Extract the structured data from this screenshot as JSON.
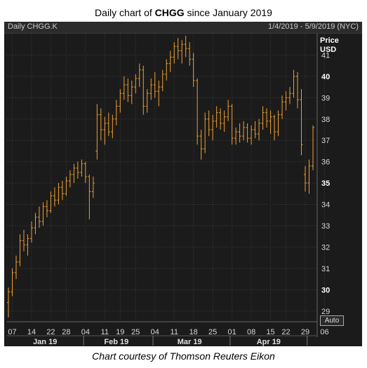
{
  "title": {
    "prefix": "Daily chart of ",
    "ticker": "CHGG",
    "suffix": " since January 2019"
  },
  "panel": {
    "symbol": "Daily CHGG.K",
    "range": "1/4/2019 - 5/9/2019 (NYC)"
  },
  "axis": {
    "price_label": "Price",
    "currency_label": "USD",
    "auto_button": "Auto"
  },
  "caption": "Chart courtesy of Thomson Reuters Eikon",
  "colors": {
    "bar": "#f0a030",
    "background": "#1b1b1b",
    "grid": "#3c3c3c"
  },
  "chart_data": {
    "type": "bar",
    "style": "ohlc",
    "ylim": [
      28.5,
      42
    ],
    "yticks": [
      29,
      30,
      31,
      32,
      33,
      34,
      35,
      36,
      37,
      38,
      39,
      40,
      41
    ],
    "ytick_bold": [
      30,
      35,
      40
    ],
    "grid": true,
    "day_ticks": [
      {
        "label": "07",
        "index": 1
      },
      {
        "label": "14",
        "index": 6
      },
      {
        "label": "22",
        "index": 11
      },
      {
        "label": "28",
        "index": 15
      },
      {
        "label": "04",
        "index": 20
      },
      {
        "label": "11",
        "index": 25
      },
      {
        "label": "19",
        "index": 29
      },
      {
        "label": "25",
        "index": 33
      },
      {
        "label": "04",
        "index": 38
      },
      {
        "label": "11",
        "index": 43
      },
      {
        "label": "18",
        "index": 48
      },
      {
        "label": "25",
        "index": 53
      },
      {
        "label": "01",
        "index": 58
      },
      {
        "label": "08",
        "index": 63
      },
      {
        "label": "15",
        "index": 68
      },
      {
        "label": "22",
        "index": 72
      },
      {
        "label": "29",
        "index": 77
      },
      {
        "label": "06",
        "index": 82
      }
    ],
    "month_labels": [
      {
        "label": "Jan 19",
        "center_index": 9.5
      },
      {
        "label": "Feb 19",
        "center_index": 28
      },
      {
        "label": "Mar 19",
        "center_index": 47
      },
      {
        "label": "Apr 19",
        "center_index": 67.5
      }
    ],
    "month_boundaries": [
      19.5,
      37.5,
      57.5,
      77.5
    ],
    "bars": [
      {
        "o": 29.4,
        "h": 30.1,
        "l": 28.7,
        "c": 29.9
      },
      {
        "o": 29.9,
        "h": 31.0,
        "l": 29.7,
        "c": 30.8
      },
      {
        "o": 30.8,
        "h": 31.6,
        "l": 30.5,
        "c": 31.3
      },
      {
        "o": 31.3,
        "h": 32.6,
        "l": 31.1,
        "c": 32.3
      },
      {
        "o": 32.3,
        "h": 32.8,
        "l": 31.8,
        "c": 32.1
      },
      {
        "o": 32.1,
        "h": 32.6,
        "l": 31.6,
        "c": 32.4
      },
      {
        "o": 32.4,
        "h": 33.2,
        "l": 32.2,
        "c": 32.9
      },
      {
        "o": 32.9,
        "h": 33.6,
        "l": 32.6,
        "c": 33.4
      },
      {
        "o": 33.4,
        "h": 33.9,
        "l": 32.9,
        "c": 33.2
      },
      {
        "o": 33.2,
        "h": 34.1,
        "l": 33.0,
        "c": 33.9
      },
      {
        "o": 33.9,
        "h": 34.2,
        "l": 33.4,
        "c": 33.7
      },
      {
        "o": 33.7,
        "h": 34.6,
        "l": 33.6,
        "c": 34.4
      },
      {
        "o": 34.4,
        "h": 34.8,
        "l": 33.9,
        "c": 34.2
      },
      {
        "o": 34.2,
        "h": 35.0,
        "l": 34.0,
        "c": 34.8
      },
      {
        "o": 34.8,
        "h": 35.1,
        "l": 34.2,
        "c": 34.5
      },
      {
        "o": 34.5,
        "h": 35.3,
        "l": 34.4,
        "c": 35.1
      },
      {
        "o": 35.1,
        "h": 35.6,
        "l": 34.8,
        "c": 35.4
      },
      {
        "o": 35.4,
        "h": 35.9,
        "l": 35.0,
        "c": 35.7
      },
      {
        "o": 35.7,
        "h": 36.0,
        "l": 35.2,
        "c": 35.5
      },
      {
        "o": 35.5,
        "h": 36.1,
        "l": 35.3,
        "c": 35.9
      },
      {
        "o": 35.9,
        "h": 36.0,
        "l": 35.0,
        "c": 35.3
      },
      {
        "o": 35.3,
        "h": 35.4,
        "l": 33.3,
        "c": 34.6
      },
      {
        "o": 34.6,
        "h": 35.3,
        "l": 34.3,
        "c": 35.0
      },
      {
        "o": 36.5,
        "h": 38.7,
        "l": 36.1,
        "c": 38.2
      },
      {
        "o": 38.2,
        "h": 38.5,
        "l": 37.0,
        "c": 37.5
      },
      {
        "o": 37.5,
        "h": 38.1,
        "l": 36.8,
        "c": 37.8
      },
      {
        "o": 37.8,
        "h": 38.3,
        "l": 37.2,
        "c": 37.4
      },
      {
        "o": 37.4,
        "h": 38.2,
        "l": 37.1,
        "c": 38.0
      },
      {
        "o": 38.0,
        "h": 38.9,
        "l": 37.7,
        "c": 38.6
      },
      {
        "o": 38.6,
        "h": 39.4,
        "l": 38.3,
        "c": 39.2
      },
      {
        "o": 39.2,
        "h": 40.0,
        "l": 38.9,
        "c": 39.6
      },
      {
        "o": 39.6,
        "h": 39.9,
        "l": 38.8,
        "c": 39.1
      },
      {
        "o": 39.1,
        "h": 39.8,
        "l": 38.7,
        "c": 39.5
      },
      {
        "o": 39.5,
        "h": 40.1,
        "l": 39.2,
        "c": 39.9
      },
      {
        "o": 39.9,
        "h": 40.6,
        "l": 39.5,
        "c": 40.3
      },
      {
        "o": 40.3,
        "h": 40.5,
        "l": 38.2,
        "c": 38.6
      },
      {
        "o": 38.6,
        "h": 39.4,
        "l": 38.3,
        "c": 39.2
      },
      {
        "o": 39.2,
        "h": 39.9,
        "l": 38.9,
        "c": 39.6
      },
      {
        "o": 39.6,
        "h": 40.2,
        "l": 39.0,
        "c": 39.3
      },
      {
        "o": 39.3,
        "h": 39.8,
        "l": 38.6,
        "c": 39.5
      },
      {
        "o": 39.5,
        "h": 40.3,
        "l": 39.3,
        "c": 40.1
      },
      {
        "o": 40.1,
        "h": 40.8,
        "l": 39.8,
        "c": 40.6
      },
      {
        "o": 40.6,
        "h": 41.2,
        "l": 40.2,
        "c": 40.9
      },
      {
        "o": 40.9,
        "h": 41.6,
        "l": 40.6,
        "c": 41.4
      },
      {
        "o": 41.4,
        "h": 41.8,
        "l": 40.8,
        "c": 41.2
      },
      {
        "o": 41.2,
        "h": 41.7,
        "l": 40.6,
        "c": 41.5
      },
      {
        "o": 41.5,
        "h": 41.9,
        "l": 40.9,
        "c": 41.3
      },
      {
        "o": 41.3,
        "h": 41.6,
        "l": 40.5,
        "c": 40.8
      },
      {
        "o": 40.8,
        "h": 41.1,
        "l": 39.5,
        "c": 39.8
      },
      {
        "o": 39.8,
        "h": 39.9,
        "l": 36.8,
        "c": 37.2
      },
      {
        "o": 37.2,
        "h": 37.5,
        "l": 36.1,
        "c": 36.6
      },
      {
        "o": 36.6,
        "h": 38.3,
        "l": 36.4,
        "c": 38.0
      },
      {
        "o": 38.0,
        "h": 38.4,
        "l": 37.2,
        "c": 37.5
      },
      {
        "o": 37.5,
        "h": 38.2,
        "l": 37.0,
        "c": 37.9
      },
      {
        "o": 37.9,
        "h": 38.6,
        "l": 37.6,
        "c": 38.3
      },
      {
        "o": 38.3,
        "h": 38.5,
        "l": 37.5,
        "c": 37.8
      },
      {
        "o": 37.8,
        "h": 38.4,
        "l": 37.4,
        "c": 38.1
      },
      {
        "o": 38.1,
        "h": 38.9,
        "l": 37.9,
        "c": 38.6
      },
      {
        "o": 38.6,
        "h": 38.7,
        "l": 36.8,
        "c": 37.1
      },
      {
        "o": 37.1,
        "h": 37.6,
        "l": 36.8,
        "c": 37.4
      },
      {
        "o": 37.4,
        "h": 37.8,
        "l": 36.9,
        "c": 37.2
      },
      {
        "o": 37.2,
        "h": 37.9,
        "l": 37.0,
        "c": 37.6
      },
      {
        "o": 37.6,
        "h": 37.8,
        "l": 36.9,
        "c": 37.1
      },
      {
        "o": 37.1,
        "h": 37.7,
        "l": 36.8,
        "c": 37.5
      },
      {
        "o": 37.5,
        "h": 37.9,
        "l": 37.1,
        "c": 37.3
      },
      {
        "o": 37.3,
        "h": 38.0,
        "l": 37.0,
        "c": 37.8
      },
      {
        "o": 37.8,
        "h": 38.6,
        "l": 37.5,
        "c": 38.3
      },
      {
        "o": 38.3,
        "h": 38.5,
        "l": 37.6,
        "c": 37.9
      },
      {
        "o": 37.9,
        "h": 38.4,
        "l": 37.3,
        "c": 38.1
      },
      {
        "o": 38.1,
        "h": 38.2,
        "l": 37.0,
        "c": 37.4
      },
      {
        "o": 37.4,
        "h": 38.4,
        "l": 37.2,
        "c": 38.2
      },
      {
        "o": 38.2,
        "h": 39.1,
        "l": 38.0,
        "c": 38.8
      },
      {
        "o": 38.8,
        "h": 39.3,
        "l": 38.4,
        "c": 39.0
      },
      {
        "o": 39.0,
        "h": 39.5,
        "l": 38.7,
        "c": 39.2
      },
      {
        "o": 39.2,
        "h": 40.3,
        "l": 39.0,
        "c": 40.0
      },
      {
        "o": 40.0,
        "h": 40.2,
        "l": 38.5,
        "c": 38.9
      },
      {
        "o": 38.9,
        "h": 39.4,
        "l": 36.3,
        "c": 36.8
      },
      {
        "o": 35.4,
        "h": 35.8,
        "l": 34.6,
        "c": 35.0
      },
      {
        "o": 35.0,
        "h": 36.1,
        "l": 34.5,
        "c": 35.8
      },
      {
        "o": 35.8,
        "h": 37.7,
        "l": 35.6,
        "c": 37.6
      }
    ]
  }
}
